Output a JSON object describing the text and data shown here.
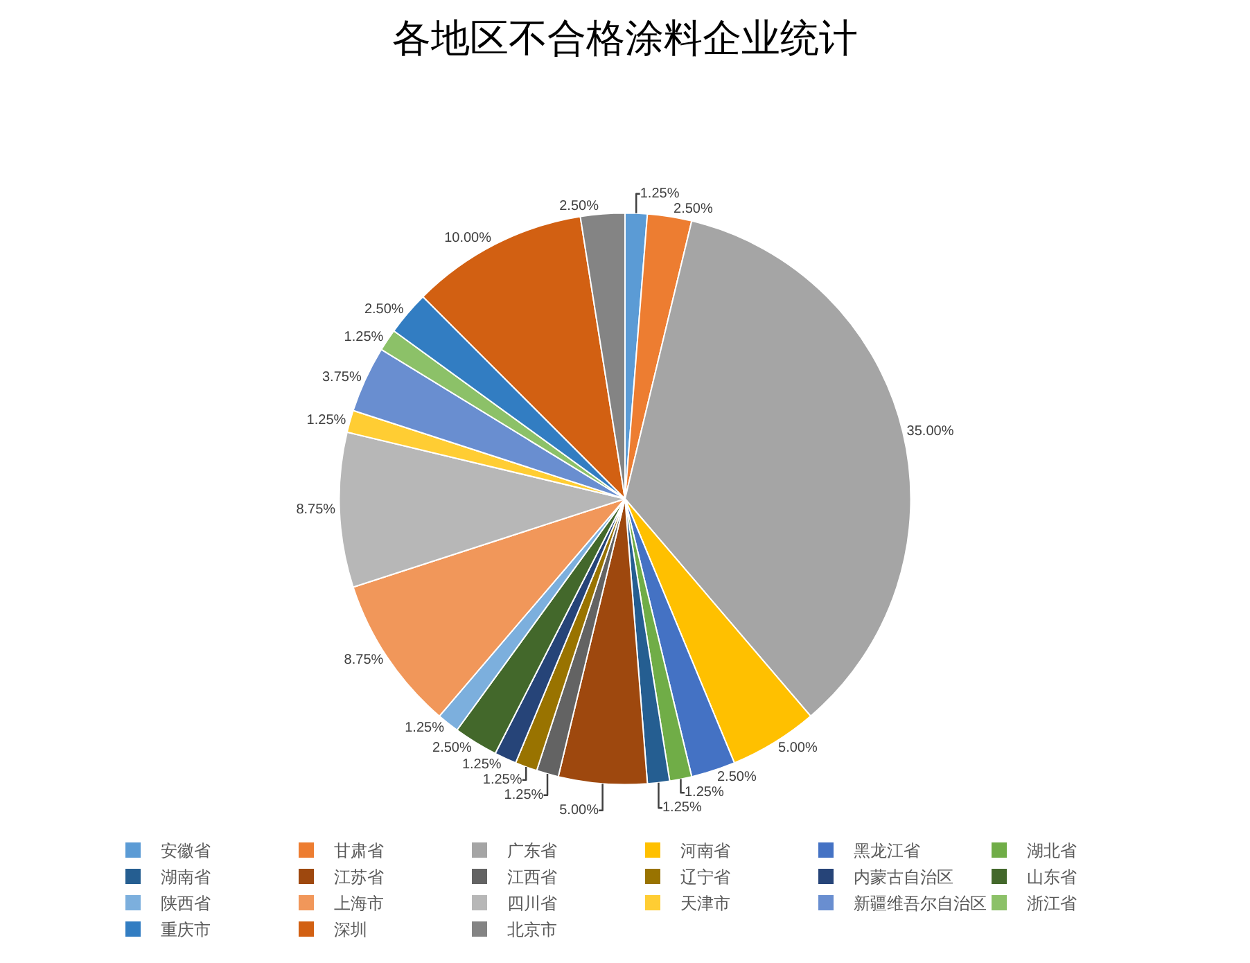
{
  "chart_data": {
    "type": "pie",
    "title": "各地区不合格涂料企业统计",
    "categories": [
      "安徽省",
      "甘肃省",
      "广东省",
      "河南省",
      "黑龙江省",
      "湖北省",
      "湖南省",
      "江苏省",
      "江西省",
      "辽宁省",
      "内蒙古自治区",
      "山东省",
      "陕西省",
      "上海市",
      "四川省",
      "天津市",
      "新疆维吾尔自治区",
      "浙江省",
      "重庆市",
      "深圳",
      "北京市"
    ],
    "values": [
      1.25,
      2.5,
      35,
      5,
      2.5,
      1.25,
      1.25,
      5,
      1.25,
      1.25,
      1.25,
      2.5,
      1.25,
      8.75,
      8.75,
      1.25,
      3.75,
      1.25,
      2.5,
      10,
      2.5
    ],
    "value_labels": [
      "1.25%",
      "2.50%",
      "35.00%",
      "5.00%",
      "2.50%",
      "1.25%",
      "1.25%",
      "5.00%",
      "1.25%",
      "1.25%",
      "1.25%",
      "2.50%",
      "1.25%",
      "8.75%",
      "8.75%",
      "1.25%",
      "3.75%",
      "1.25%",
      "2.50%",
      "10.00%",
      "2.50%"
    ],
    "colors": [
      "#5b9bd5",
      "#ed7d31",
      "#a5a5a5",
      "#ffc000",
      "#4472c4",
      "#70ad47",
      "#255e91",
      "#9e480e",
      "#636363",
      "#997300",
      "#264478",
      "#43682b",
      "#7cafdd",
      "#f1975a",
      "#b7b7b7",
      "#ffcd33",
      "#698ed0",
      "#8cc168",
      "#327dc2",
      "#d26012",
      "#848484"
    ],
    "legend": "bottom"
  }
}
